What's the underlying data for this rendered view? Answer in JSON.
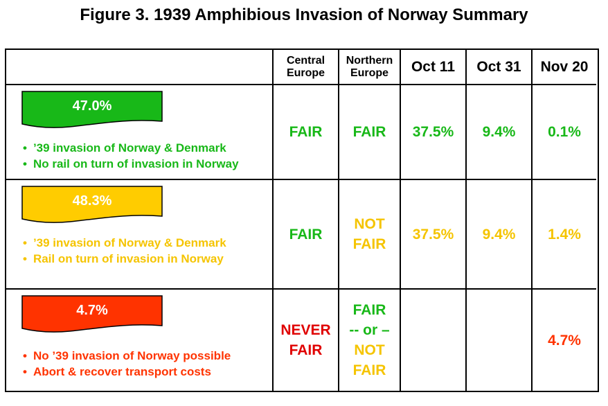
{
  "title": "Figure 3.  1939 Amphibious Invasion of Norway Summary",
  "headers": {
    "col1": "",
    "central": [
      "Central",
      "Europe"
    ],
    "northern": [
      "Northern",
      "Europe"
    ],
    "oct11": "Oct 11",
    "oct31": "Oct 31",
    "nov20": "Nov 20"
  },
  "colors": {
    "green": "#18b818",
    "yellow": "#f5c400",
    "orange": "#ff3300",
    "red": "#e00000"
  },
  "rows": [
    {
      "color": "green",
      "percent": "47.0%",
      "bullets": [
        "’39 invasion of Norway & Denmark",
        "No rail on turn of invasion in Norway"
      ],
      "central": [
        "FAIR"
      ],
      "northern": [
        "FAIR"
      ],
      "oct11": "37.5%",
      "oct31": "9.4%",
      "nov20": "0.1%"
    },
    {
      "color": "yellow",
      "percent": "48.3%",
      "bullets": [
        "’39 invasion of Norway & Denmark",
        "Rail on turn of invasion in Norway"
      ],
      "central": [
        "FAIR"
      ],
      "northern": [
        "NOT",
        "FAIR"
      ],
      "oct11": "37.5%",
      "oct31": "9.4%",
      "nov20": "1.4%"
    },
    {
      "color": "orange",
      "percent": "4.7%",
      "bullets": [
        "No ’39 invasion of Norway possible",
        "Abort & recover transport costs"
      ],
      "central": [
        "NEVER",
        "FAIR"
      ],
      "northern": [
        "FAIR",
        "-- or –",
        "NOT",
        "FAIR"
      ],
      "oct11": "",
      "oct31": "",
      "nov20": "4.7%"
    }
  ]
}
